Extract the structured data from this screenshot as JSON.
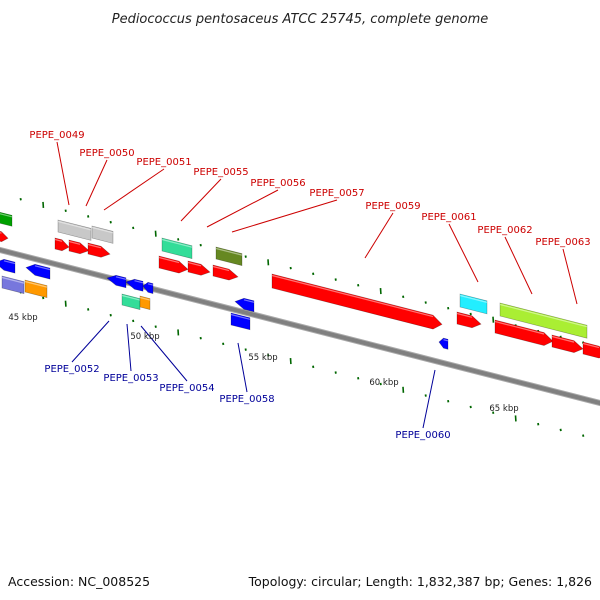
{
  "title": "Pediococcus pentosaceus ATCC 25745, complete genome",
  "footer": {
    "accession": "Accession: NC_008525",
    "topology": "Topology: circular; Length: 1,832,387 bp; Genes: 1,826"
  },
  "colors": {
    "backbone": "#808080",
    "label_forward": "#cc0000",
    "label_reverse": "#000099",
    "tick": "#006600",
    "red": "#ff0000",
    "blue": "#0000ff",
    "gray": "#c8c8c8",
    "green": "#00a000",
    "teal": "#33dd99",
    "olive": "#668822",
    "cyan": "#22eeff",
    "lime": "#aaee33",
    "orange": "#ff9900",
    "purple": "#7777dd"
  },
  "scale_labels": [
    "45 kbp",
    "50 kbp",
    "55 kbp",
    "60 kbp",
    "65 kbp"
  ],
  "labels_forward": [
    "PEPE_0049",
    "PEPE_0050",
    "PEPE_0051",
    "PEPE_0055",
    "PEPE_0056",
    "PEPE_0057",
    "PEPE_0059",
    "PEPE_0061",
    "PEPE_0062",
    "PEPE_0063"
  ],
  "labels_reverse": [
    "PEPE_0052",
    "PEPE_0053",
    "PEPE_0054",
    "PEPE_0058",
    "PEPE_0060"
  ]
}
